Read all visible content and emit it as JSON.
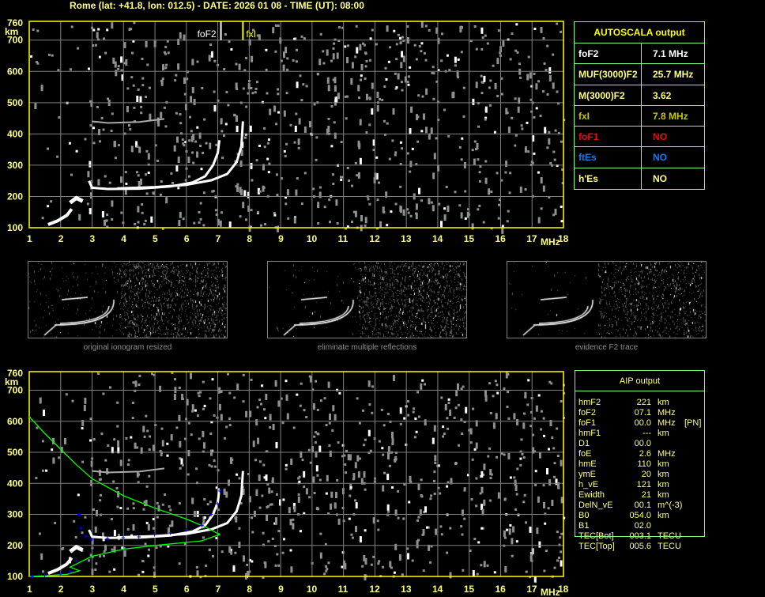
{
  "header": {
    "title": "Rome (lat: +41.8, lon: 012.5) - DATE: 2026 01 08 - TIME (UT): 08:00"
  },
  "colors": {
    "axis": "#ffff00",
    "grid": "#808080",
    "label": "#ffff80",
    "table_border": "#80ff80",
    "profile": "#00ff00",
    "trace_points": "#0000ff",
    "foF1": "#ff0000",
    "ftEs": "#0080ff"
  },
  "axes": {
    "x_ticks": [
      "1",
      "2",
      "3",
      "4",
      "5",
      "6",
      "7",
      "8",
      "9",
      "10",
      "11",
      "12",
      "13",
      "14",
      "15",
      "16",
      "17",
      "18"
    ],
    "x_unit": "MHz",
    "y_ticks": [
      "100",
      "200",
      "300",
      "400",
      "500",
      "600",
      "700",
      "760"
    ],
    "y_unit": "km"
  },
  "markers": {
    "foF2_label": "foF2",
    "fxI_label": "fxI",
    "foF2": 7.1,
    "fxI": 7.8
  },
  "thumbnails": [
    {
      "caption": "original ionogram resized"
    },
    {
      "caption": "eliminate multiple reflections"
    },
    {
      "caption": "evidence F2 trace"
    }
  ],
  "autoscala": {
    "title": "AUTOSCALA output",
    "rows": [
      {
        "key": "foF2",
        "value": "7.1 MHz",
        "color": "#ffffff"
      },
      {
        "key": "MUF(3000)F2",
        "value": "25.7 MHz",
        "color": "#ffff80"
      },
      {
        "key": "M(3000)F2",
        "value": "3.62",
        "color": "#ffff80"
      },
      {
        "key": "fxI",
        "value": "7.8 MHz",
        "color": "#c8c800"
      },
      {
        "key": "foF1",
        "value": "NO",
        "color": "#ff0000"
      },
      {
        "key": "ftEs",
        "value": "NO",
        "color": "#0080ff"
      },
      {
        "key": "h'Es",
        "value": "NO",
        "color": "#ffff80"
      }
    ]
  },
  "aip": {
    "title": "AIP output",
    "rows": [
      {
        "k": "hmF2",
        "v": "221",
        "u": "km",
        "x": ""
      },
      {
        "k": "foF2",
        "v": "07.1",
        "u": "MHz",
        "x": ""
      },
      {
        "k": "foF1",
        "v": "00.0",
        "u": "MHz",
        "x": "[PN]"
      },
      {
        "k": "hmF1",
        "v": "---",
        "u": "km",
        "x": ""
      },
      {
        "k": "D1",
        "v": "00.0",
        "u": "",
        "x": ""
      },
      {
        "k": "foE",
        "v": "2.6",
        "u": "MHz",
        "x": ""
      },
      {
        "k": "hmE",
        "v": "110",
        "u": "km",
        "x": ""
      },
      {
        "k": "ymE",
        "v": "20",
        "u": "km",
        "x": ""
      },
      {
        "k": "h_vE",
        "v": "121",
        "u": "km",
        "x": ""
      },
      {
        "k": "Ewidth",
        "v": "21",
        "u": "km",
        "x": ""
      },
      {
        "k": "DelN_vE",
        "v": "00.1",
        "u": "m^(-3)",
        "x": ""
      },
      {
        "k": "B0",
        "v": "054.0",
        "u": "km",
        "x": ""
      },
      {
        "k": "B1",
        "v": "02.0",
        "u": "",
        "x": ""
      },
      {
        "k": "TEC[Bot]",
        "v": "003.1",
        "u": "TECU",
        "x": ""
      },
      {
        "k": "TEC[Top]",
        "v": "005.6",
        "u": "TECU",
        "x": ""
      }
    ]
  }
}
